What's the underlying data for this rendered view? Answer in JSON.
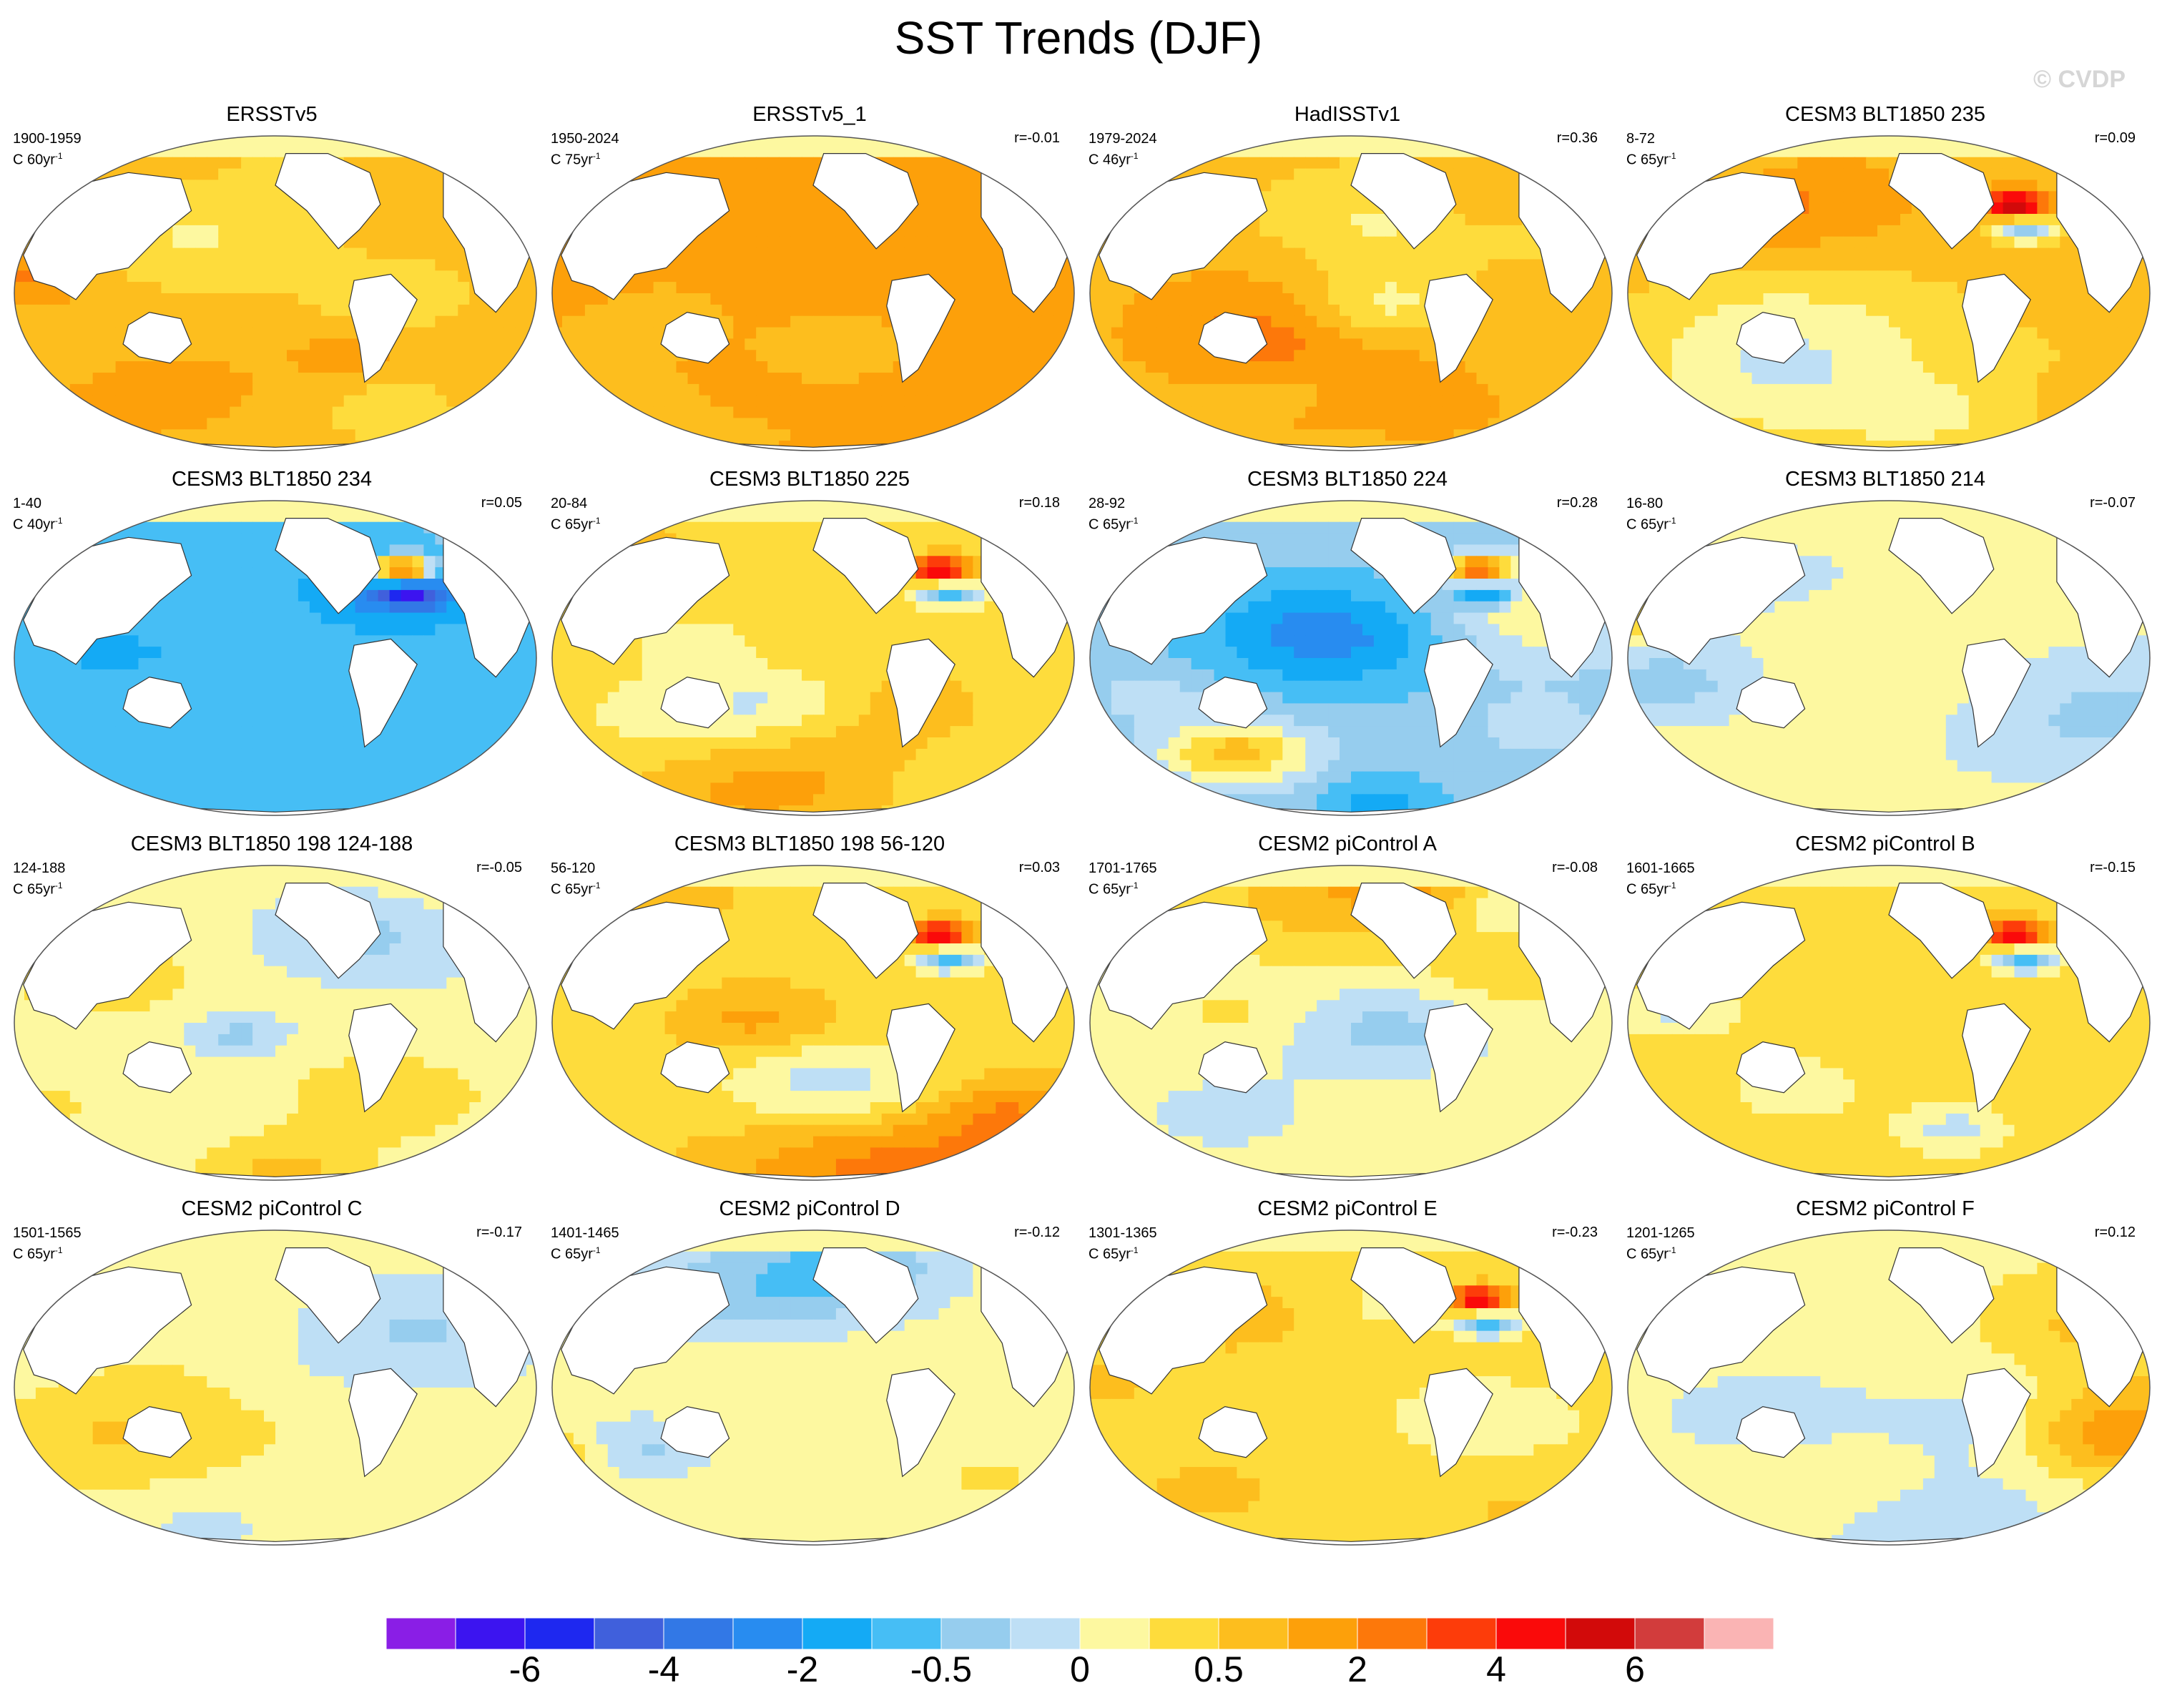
{
  "title": "SST Trends (DJF)",
  "watermark": "© CVDP",
  "panels": [
    {
      "title": "ERSSTv5",
      "period": "1900-1959",
      "trend_len": "C 60yr",
      "r": "",
      "pattern": "warm-broad",
      "seed": 3
    },
    {
      "title": "ERSSTv5_1",
      "period": "1950-2024",
      "trend_len": "C 75yr",
      "r": "r=-0.01",
      "pattern": "warm-strong",
      "seed": 7
    },
    {
      "title": "HadISSTv1",
      "period": "1979-2024",
      "trend_len": "C 46yr",
      "r": "r=0.36",
      "pattern": "warm-cool-pacific",
      "seed": 11
    },
    {
      "title": "CESM3 BLT1850 235",
      "period": "8-72",
      "trend_len": "C 65yr",
      "r": "r=0.09",
      "pattern": "warm-hotspot",
      "seed": 13
    },
    {
      "title": "CESM3 BLT1850 234",
      "period": "1-40",
      "trend_len": "C 40yr",
      "r": "r=0.05",
      "pattern": "cool-broad",
      "seed": 17
    },
    {
      "title": "CESM3 BLT1850 225",
      "period": "20-84",
      "trend_len": "C 65yr",
      "r": "r=0.18",
      "pattern": "mixed-warm",
      "seed": 19
    },
    {
      "title": "CESM3 BLT1850 224",
      "period": "28-92",
      "trend_len": "C 65yr",
      "r": "r=0.28",
      "pattern": "cool-pacific-tongue",
      "seed": 23
    },
    {
      "title": "CESM3 BLT1850 214",
      "period": "16-80",
      "trend_len": "C 65yr",
      "r": "r=-0.07",
      "pattern": "mixed",
      "seed": 29
    },
    {
      "title": "CESM3 BLT1850 198 124-188",
      "period": "124-188",
      "trend_len": "C 65yr",
      "r": "r=-0.05",
      "pattern": "mixed",
      "seed": 31
    },
    {
      "title": "CESM3 BLT1850 198 56-120",
      "period": "56-120",
      "trend_len": "C 65yr",
      "r": "r=0.03",
      "pattern": "mixed-warm",
      "seed": 37
    },
    {
      "title": "CESM2 piControl A",
      "period": "1701-1765",
      "trend_len": "C 65yr",
      "r": "r=-0.08",
      "pattern": "mixed-weak",
      "seed": 41
    },
    {
      "title": "CESM2 piControl B",
      "period": "1601-1665",
      "trend_len": "C 65yr",
      "r": "r=-0.15",
      "pattern": "mixed-warm",
      "seed": 43
    },
    {
      "title": "CESM2 piControl C",
      "period": "1501-1565",
      "trend_len": "C 65yr",
      "r": "r=-0.17",
      "pattern": "mixed-weak",
      "seed": 47
    },
    {
      "title": "CESM2 piControl D",
      "period": "1401-1465",
      "trend_len": "C 65yr",
      "r": "r=-0.12",
      "pattern": "mixed-weak",
      "seed": 53
    },
    {
      "title": "CESM2 piControl E",
      "period": "1301-1365",
      "trend_len": "C 65yr",
      "r": "r=-0.23",
      "pattern": "mixed-warm",
      "seed": 59
    },
    {
      "title": "CESM2 piControl F",
      "period": "1201-1265",
      "trend_len": "C 65yr",
      "r": "r=0.12",
      "pattern": "mixed-weak",
      "seed": 61
    }
  ],
  "colorbar": {
    "colors": [
      "#8a1ee6",
      "#3c14f0",
      "#1e28f0",
      "#4060dc",
      "#3278e6",
      "#288cf0",
      "#14aaf5",
      "#46bef5",
      "#96cdee",
      "#bedff5",
      "#fdf8a0",
      "#fedc3c",
      "#fdbe1e",
      "#fda00a",
      "#fd780a",
      "#fd3c0a",
      "#fa0a0a",
      "#d20a0a",
      "#d23c3c",
      "#fab4b4"
    ],
    "labels": [
      {
        "text": "-6",
        "boundary": 2
      },
      {
        "text": "-4",
        "boundary": 4
      },
      {
        "text": "-2",
        "boundary": 6
      },
      {
        "text": "-0.5",
        "boundary": 8
      },
      {
        "text": "0",
        "boundary": 10
      },
      {
        "text": "0.5",
        "boundary": 12
      },
      {
        "text": "2",
        "boundary": 14
      },
      {
        "text": "4",
        "boundary": 16
      },
      {
        "text": "6",
        "boundary": 18
      }
    ]
  }
}
